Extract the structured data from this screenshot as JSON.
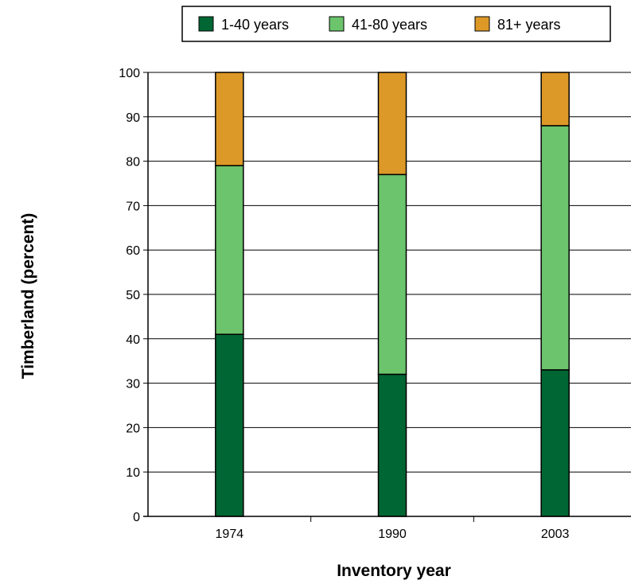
{
  "chart_data": {
    "type": "bar",
    "stacked": true,
    "categories": [
      "1974",
      "1990",
      "2003"
    ],
    "series": [
      {
        "name": "1-40 years",
        "color": "#006633",
        "values": [
          41,
          32,
          33
        ]
      },
      {
        "name": "41-80 years",
        "color": "#6cc46c",
        "values": [
          38,
          45,
          55
        ]
      },
      {
        "name": "81+ years",
        "color": "#dd9927",
        "values": [
          21,
          23,
          12
        ]
      }
    ],
    "xlabel": "Inventory year",
    "ylabel": "Timberland (percent)",
    "ylim": [
      0,
      100
    ],
    "yticks": [
      0,
      10,
      20,
      30,
      40,
      50,
      60,
      70,
      80,
      90,
      100
    ],
    "grid": true,
    "legend_position": "top"
  }
}
